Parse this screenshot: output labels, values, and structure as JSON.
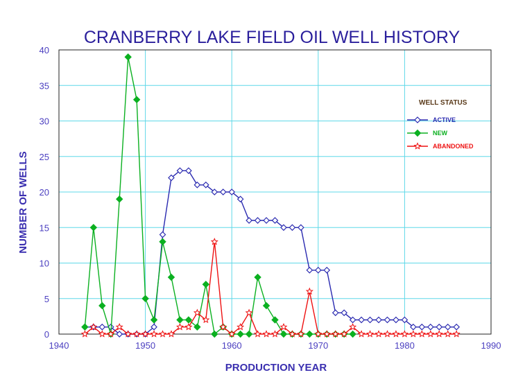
{
  "chart_data": {
    "type": "line",
    "title": "CRANBERRY LAKE FIELD OIL WELL HISTORY",
    "xlabel": "PRODUCTION YEAR",
    "ylabel": "NUMBER OF WELLS",
    "xlim": [
      1940,
      1990
    ],
    "ylim": [
      0,
      40
    ],
    "x_ticks": [
      1940,
      1950,
      1960,
      1970,
      1980,
      1990
    ],
    "y_ticks": [
      0,
      5,
      10,
      15,
      20,
      25,
      30,
      35,
      40
    ],
    "grid": true,
    "legend_title": "WELL STATUS",
    "legend_position": "right",
    "series": [
      {
        "name": "ACTIVE",
        "color": "#2a2ab0",
        "marker": "open-diamond",
        "x": [
          1943,
          1944,
          1945,
          1946,
          1947,
          1948,
          1949,
          1950,
          1951,
          1952,
          1953,
          1954,
          1955,
          1956,
          1957,
          1958,
          1959,
          1960,
          1961,
          1962,
          1963,
          1964,
          1965,
          1966,
          1967,
          1968,
          1969,
          1970,
          1971,
          1972,
          1973,
          1974,
          1975,
          1976,
          1977,
          1978,
          1979,
          1980,
          1981,
          1982,
          1983,
          1984,
          1985,
          1986
        ],
        "y": [
          1,
          1,
          1,
          1,
          0,
          0,
          0,
          0,
          1,
          14,
          22,
          23,
          23,
          21,
          21,
          20,
          20,
          20,
          19,
          16,
          16,
          16,
          16,
          15,
          15,
          15,
          9,
          9,
          9,
          3,
          3,
          2,
          2,
          2,
          2,
          2,
          2,
          2,
          1,
          1,
          1,
          1,
          1,
          1
        ]
      },
      {
        "name": "NEW",
        "color": "#0bb020",
        "marker": "filled-diamond",
        "x": [
          1943,
          1944,
          1945,
          1946,
          1947,
          1948,
          1949,
          1950,
          1951,
          1952,
          1953,
          1954,
          1955,
          1956,
          1957,
          1958,
          1959,
          1960,
          1961,
          1962,
          1963,
          1964,
          1965,
          1966,
          1967,
          1968,
          1969,
          1970,
          1971,
          1972,
          1973,
          1974
        ],
        "y": [
          1,
          15,
          4,
          0,
          19,
          39,
          33,
          5,
          2,
          13,
          8,
          2,
          2,
          1,
          7,
          0,
          1,
          0,
          0,
          0,
          8,
          4,
          2,
          0,
          0,
          0,
          0,
          0,
          0,
          0,
          0,
          0
        ]
      },
      {
        "name": "ABANDONED",
        "color": "#ee1111",
        "marker": "open-star",
        "x": [
          1943,
          1944,
          1945,
          1946,
          1947,
          1948,
          1949,
          1950,
          1951,
          1952,
          1953,
          1954,
          1955,
          1956,
          1957,
          1958,
          1959,
          1960,
          1961,
          1962,
          1963,
          1964,
          1965,
          1966,
          1967,
          1968,
          1969,
          1970,
          1971,
          1972,
          1973,
          1974,
          1975,
          1976,
          1977,
          1978,
          1979,
          1980,
          1981,
          1982,
          1983,
          1984,
          1985,
          1986
        ],
        "y": [
          0,
          1,
          0,
          0,
          1,
          0,
          0,
          0,
          0,
          0,
          0,
          1,
          1,
          3,
          2,
          13,
          1,
          0,
          1,
          3,
          0,
          0,
          0,
          1,
          0,
          0,
          6,
          0,
          0,
          0,
          0,
          1,
          0,
          0,
          0,
          0,
          0,
          0,
          0,
          0,
          0,
          0,
          0,
          0
        ]
      }
    ]
  }
}
